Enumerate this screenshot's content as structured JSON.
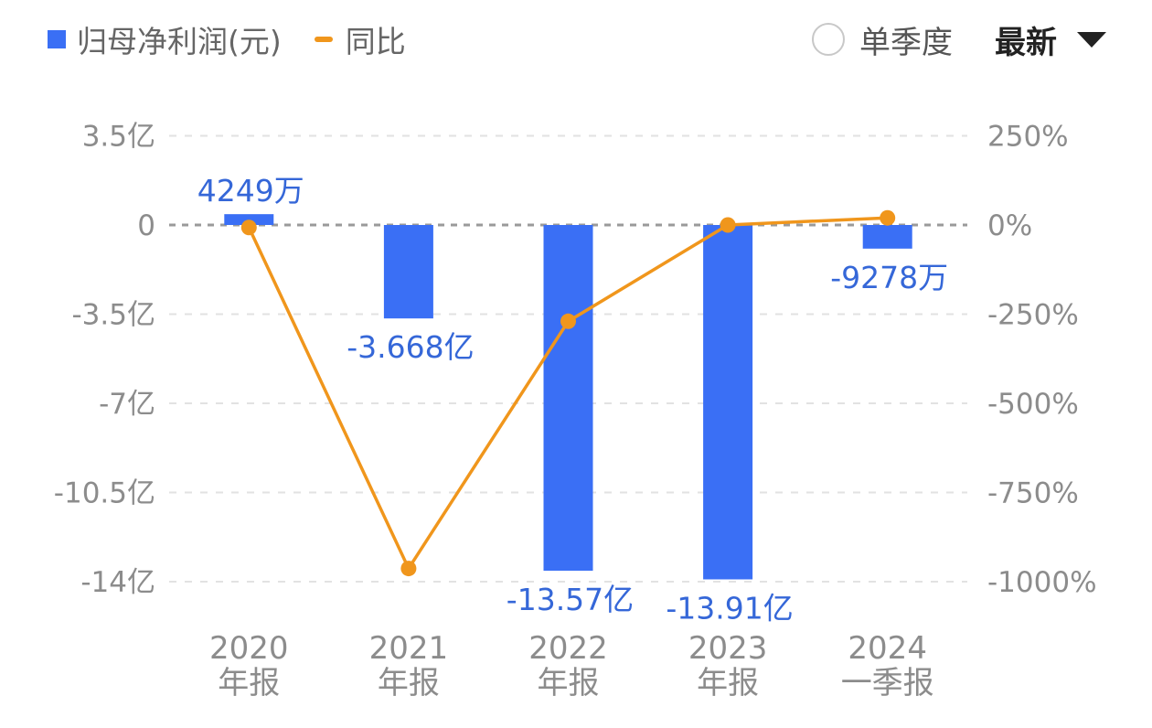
{
  "legend": {
    "bar_label": "归母净利润(元)",
    "line_label": "同比"
  },
  "controls": {
    "toggle_label": "单季度",
    "dropdown_label": "最新"
  },
  "colors": {
    "bar": "#3a6ff5",
    "line": "#f0961c",
    "label": "#3567d8",
    "axis_text": "#8c8c8c"
  },
  "chart_data": {
    "type": "bar",
    "categories": [
      [
        "2020",
        "年报"
      ],
      [
        "2021",
        "年报"
      ],
      [
        "2022",
        "年报"
      ],
      [
        "2023",
        "年报"
      ],
      [
        "2024",
        "一季报"
      ]
    ],
    "series": [
      {
        "name": "归母净利润(元)",
        "type": "bar",
        "axis": "left",
        "values": [
          0.4249,
          -3.668,
          -13.57,
          -13.91,
          -0.9278
        ],
        "labels": [
          "4249万",
          "-3.668亿",
          "-13.57亿",
          "-13.91亿",
          "-9278万"
        ]
      },
      {
        "name": "同比",
        "type": "line",
        "axis": "right",
        "values": [
          -7,
          -963,
          -270,
          0,
          20
        ]
      }
    ],
    "left_axis": {
      "unit": "亿",
      "ylim": [
        -14,
        3.5
      ],
      "ticks": [
        3.5,
        0,
        -3.5,
        -7,
        -10.5,
        -14
      ],
      "tick_labels": [
        "3.5亿",
        "0",
        "-3.5亿",
        "-7亿",
        "-10.5亿",
        "-14亿"
      ]
    },
    "right_axis": {
      "unit": "%",
      "ylim": [
        -1000,
        250
      ],
      "ticks": [
        250,
        0,
        -250,
        -500,
        -750,
        -1000
      ],
      "tick_labels": [
        "250%",
        "0%",
        "-250%",
        "-500%",
        "-750%",
        "-1000%"
      ]
    },
    "grid": true,
    "legend_position": "top-left"
  }
}
